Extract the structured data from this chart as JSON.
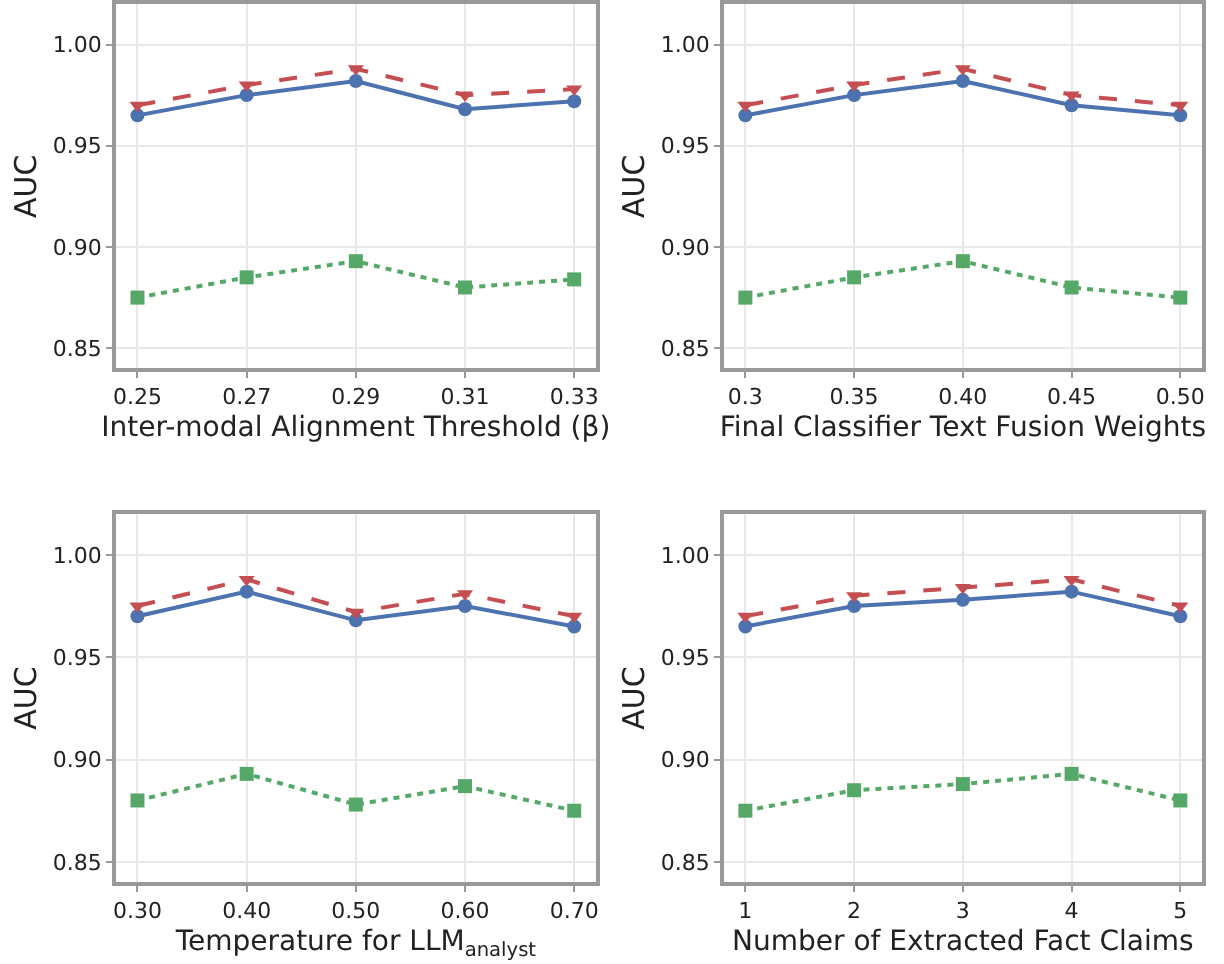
{
  "chart_data": [
    {
      "type": "line",
      "xlabel": "Inter-modal Alignment Threshold (β)",
      "ylabel": "AUC",
      "categories": [
        "0.25",
        "0.27",
        "0.29",
        "0.31",
        "0.33"
      ],
      "ylim": [
        0.84,
        1.02
      ],
      "yticks": [
        {
          "value": 0.85,
          "label": "0.85"
        },
        {
          "value": 0.9,
          "label": "0.90"
        },
        {
          "value": 0.95,
          "label": "0.95"
        },
        {
          "value": 1.0,
          "label": "1.00"
        }
      ],
      "grid": true,
      "series": [
        {
          "color": "#4c72b0",
          "marker": "circle",
          "line_style": "solid",
          "values": [
            0.965,
            0.975,
            0.982,
            0.968,
            0.972
          ]
        },
        {
          "color": "#c44e52",
          "marker": "triangle",
          "line_style": "dashed",
          "values": [
            0.97,
            0.98,
            0.988,
            0.975,
            0.978
          ]
        },
        {
          "color": "#55a868",
          "marker": "square",
          "line_style": "dotted",
          "values": [
            0.875,
            0.885,
            0.893,
            0.88,
            0.884
          ]
        }
      ]
    },
    {
      "type": "line",
      "xlabel": "Final Classifier Text Fusion Weights",
      "ylabel": "AUC",
      "categories": [
        "0.3",
        "0.35",
        "0.40",
        "0.45",
        "0.50"
      ],
      "ylim": [
        0.84,
        1.02
      ],
      "yticks": [
        {
          "value": 0.85,
          "label": "0.85"
        },
        {
          "value": 0.9,
          "label": "0.90"
        },
        {
          "value": 0.95,
          "label": "0.95"
        },
        {
          "value": 1.0,
          "label": "1.00"
        }
      ],
      "grid": true,
      "series": [
        {
          "color": "#4c72b0",
          "marker": "circle",
          "line_style": "solid",
          "values": [
            0.965,
            0.975,
            0.982,
            0.97,
            0.965
          ]
        },
        {
          "color": "#c44e52",
          "marker": "triangle",
          "line_style": "dashed",
          "values": [
            0.97,
            0.98,
            0.988,
            0.975,
            0.97
          ]
        },
        {
          "color": "#55a868",
          "marker": "square",
          "line_style": "dotted",
          "values": [
            0.875,
            0.885,
            0.893,
            0.88,
            0.875
          ]
        }
      ]
    },
    {
      "type": "line",
      "xlabel": "Temperature for LLM$_{analyst}$",
      "ylabel": "AUC",
      "categories": [
        "0.30",
        "0.40",
        "0.50",
        "0.60",
        "0.70"
      ],
      "ylim": [
        0.84,
        1.02
      ],
      "yticks": [
        {
          "value": 0.85,
          "label": "0.85"
        },
        {
          "value": 0.9,
          "label": "0.90"
        },
        {
          "value": 0.95,
          "label": "0.95"
        },
        {
          "value": 1.0,
          "label": "1.00"
        }
      ],
      "grid": true,
      "series": [
        {
          "color": "#4c72b0",
          "marker": "circle",
          "line_style": "solid",
          "values": [
            0.97,
            0.982,
            0.968,
            0.975,
            0.965
          ]
        },
        {
          "color": "#c44e52",
          "marker": "triangle",
          "line_style": "dashed",
          "values": [
            0.975,
            0.988,
            0.972,
            0.981,
            0.97
          ]
        },
        {
          "color": "#55a868",
          "marker": "square",
          "line_style": "dotted",
          "values": [
            0.88,
            0.893,
            0.878,
            0.887,
            0.875
          ]
        }
      ]
    },
    {
      "type": "line",
      "xlabel": "Number of Extracted Fact Claims",
      "ylabel": "AUC",
      "categories": [
        "1",
        "2",
        "3",
        "4",
        "5"
      ],
      "ylim": [
        0.84,
        1.02
      ],
      "yticks": [
        {
          "value": 0.85,
          "label": "0.85"
        },
        {
          "value": 0.9,
          "label": "0.90"
        },
        {
          "value": 0.95,
          "label": "0.95"
        },
        {
          "value": 1.0,
          "label": "1.00"
        }
      ],
      "grid": true,
      "series": [
        {
          "color": "#4c72b0",
          "marker": "circle",
          "line_style": "solid",
          "values": [
            0.965,
            0.975,
            0.978,
            0.982,
            0.97
          ]
        },
        {
          "color": "#c44e52",
          "marker": "triangle",
          "line_style": "dashed",
          "values": [
            0.97,
            0.98,
            0.984,
            0.988,
            0.975
          ]
        },
        {
          "color": "#55a868",
          "marker": "square",
          "line_style": "dotted",
          "values": [
            0.875,
            0.885,
            0.888,
            0.893,
            0.88
          ]
        }
      ]
    }
  ]
}
